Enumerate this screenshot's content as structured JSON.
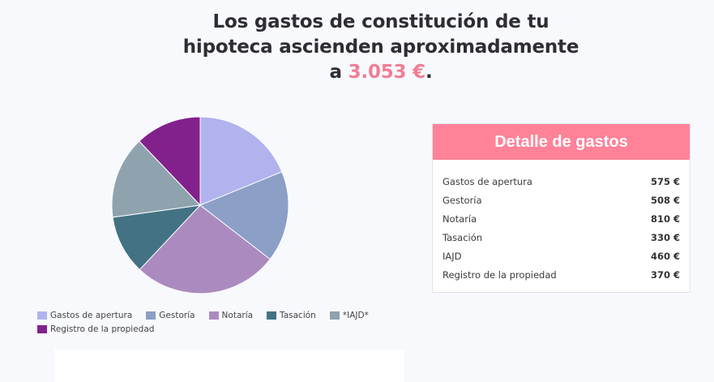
{
  "headline": {
    "line1": "Los gastos de constitución de tu",
    "line2": "hipoteca ascienden aproximadamente",
    "prefix": "a",
    "amount": "3.053 €",
    "suffix": "."
  },
  "chart_data": {
    "type": "pie",
    "title": "",
    "series": [
      {
        "name": "Gastos de apertura",
        "value": 575,
        "color": "#b1b3ef"
      },
      {
        "name": "Gestoría",
        "value": 508,
        "color": "#8c9fc7"
      },
      {
        "name": "Notaría",
        "value": 810,
        "color": "#ab8bbf"
      },
      {
        "name": "Tasación",
        "value": 330,
        "color": "#437284"
      },
      {
        "name": "*IAJD*",
        "value": 460,
        "color": "#8fa3ae"
      },
      {
        "name": "Registro de la propiedad",
        "value": 370,
        "color": "#82218b"
      }
    ],
    "legend_position": "bottom"
  },
  "detail": {
    "title": "Detalle de gastos",
    "rows": [
      {
        "label": "Gastos de apertura",
        "value": "575 €"
      },
      {
        "label": "Gestoría",
        "value": "508 €"
      },
      {
        "label": "Notaría",
        "value": "810 €"
      },
      {
        "label": "Tasación",
        "value": "330 €"
      },
      {
        "label": "IAJD",
        "value": "460 €"
      },
      {
        "label": "Registro de la propiedad",
        "value": "370 €"
      }
    ]
  },
  "colors": {
    "background": "#f8f9fd",
    "accent": "#ff8299",
    "amount": "#f07e93"
  }
}
